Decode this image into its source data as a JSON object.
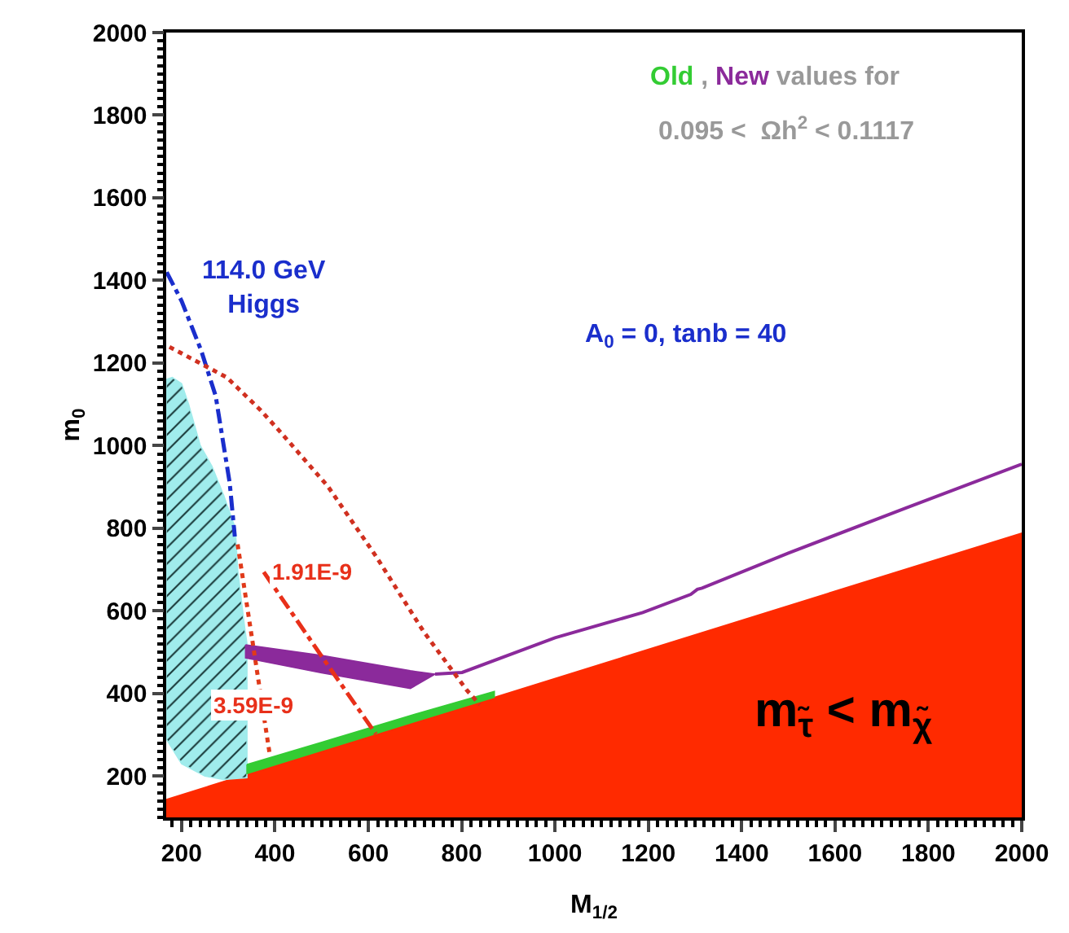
{
  "chart_data": {
    "type": "line",
    "xlabel": "M$_{1/2}$",
    "ylabel": "m$_{0}$",
    "xlim": [
      167,
      2000
    ],
    "ylim": [
      100,
      2000
    ],
    "xticks": [
      200,
      400,
      600,
      800,
      1000,
      1200,
      1400,
      1600,
      1800,
      2000
    ],
    "yticks": [
      200,
      400,
      600,
      800,
      1000,
      1200,
      1400,
      1600,
      1800,
      2000
    ],
    "grid": false,
    "annotations": [
      "Old , New values for",
      "0.095 <  Ωh$^{2}$ < 0.1117",
      "114.0 GeV\nHiggs",
      "A$_{0}$ = 0, tanb = 40",
      "1.91E-9",
      "3.59E-9",
      "m$_{τ̃}$ < m$_{χ̃}$"
    ],
    "series": [
      {
        "type": "area",
        "color": "#ff2a00",
        "x": [
          167,
          2000
        ],
        "values": [
          145,
          790
        ]
      },
      {
        "type": "area",
        "color": "#a0ecec",
        "x": [
          167,
          180,
          200,
          215,
          240,
          265,
          290,
          315,
          320,
          335,
          340,
          340,
          290,
          250,
          200,
          167,
          167
        ],
        "values": [
          1160,
          1165,
          1150,
          1100,
          1000,
          950,
          880,
          800,
          700,
          560,
          520,
          196,
          192,
          200,
          230,
          290,
          1160
        ]
      },
      {
        "type": "area",
        "color": "#33cc33",
        "x": [
          340,
          500,
          700,
          870,
          870,
          700,
          500,
          340,
          340
        ],
        "values": [
          228,
          282,
          350,
          405,
          391,
          332,
          262,
          206,
          228
        ]
      },
      {
        "type": "area",
        "color": "#8b2a9b",
        "x": [
          337,
          500,
          690,
          743,
          690,
          500,
          337,
          337
        ],
        "values": [
          518,
          492,
          455,
          447,
          412,
          450,
          486,
          518
        ]
      },
      {
        "color": "#8b2a9b",
        "x": [
          743,
          801,
          1000,
          1188,
          1291,
          1305,
          1315,
          1500,
          1750,
          2000
        ],
        "values": [
          447,
          451,
          535,
          596,
          640,
          652,
          655,
          740,
          848,
          955
        ],
        "line_style": "solid"
      },
      {
        "color": "#1a2ecc",
        "x": [
          168,
          200,
          242,
          273,
          303,
          314
        ],
        "values": [
          1420,
          1350,
          1230,
          1120,
          910,
          780
        ],
        "line_style": "dashed"
      },
      {
        "color": "#d03020",
        "x": [
          174,
          297,
          369,
          410,
          513,
          616,
          719,
          811,
          839
        ],
        "values": [
          1239,
          1165,
          1086,
          1035,
          902,
          733,
          549,
          408,
          373
        ],
        "line_style": "dotted"
      },
      {
        "color": "#e8301a",
        "x": [
          376,
          500,
          616
        ],
        "values": [
          694,
          490,
          302
        ],
        "line_style": "dashed"
      },
      {
        "color": "#e03a1a",
        "x": [
          320,
          354,
          389
        ],
        "values": [
          761,
          510,
          251
        ],
        "line_style": "dotted"
      }
    ]
  }
}
